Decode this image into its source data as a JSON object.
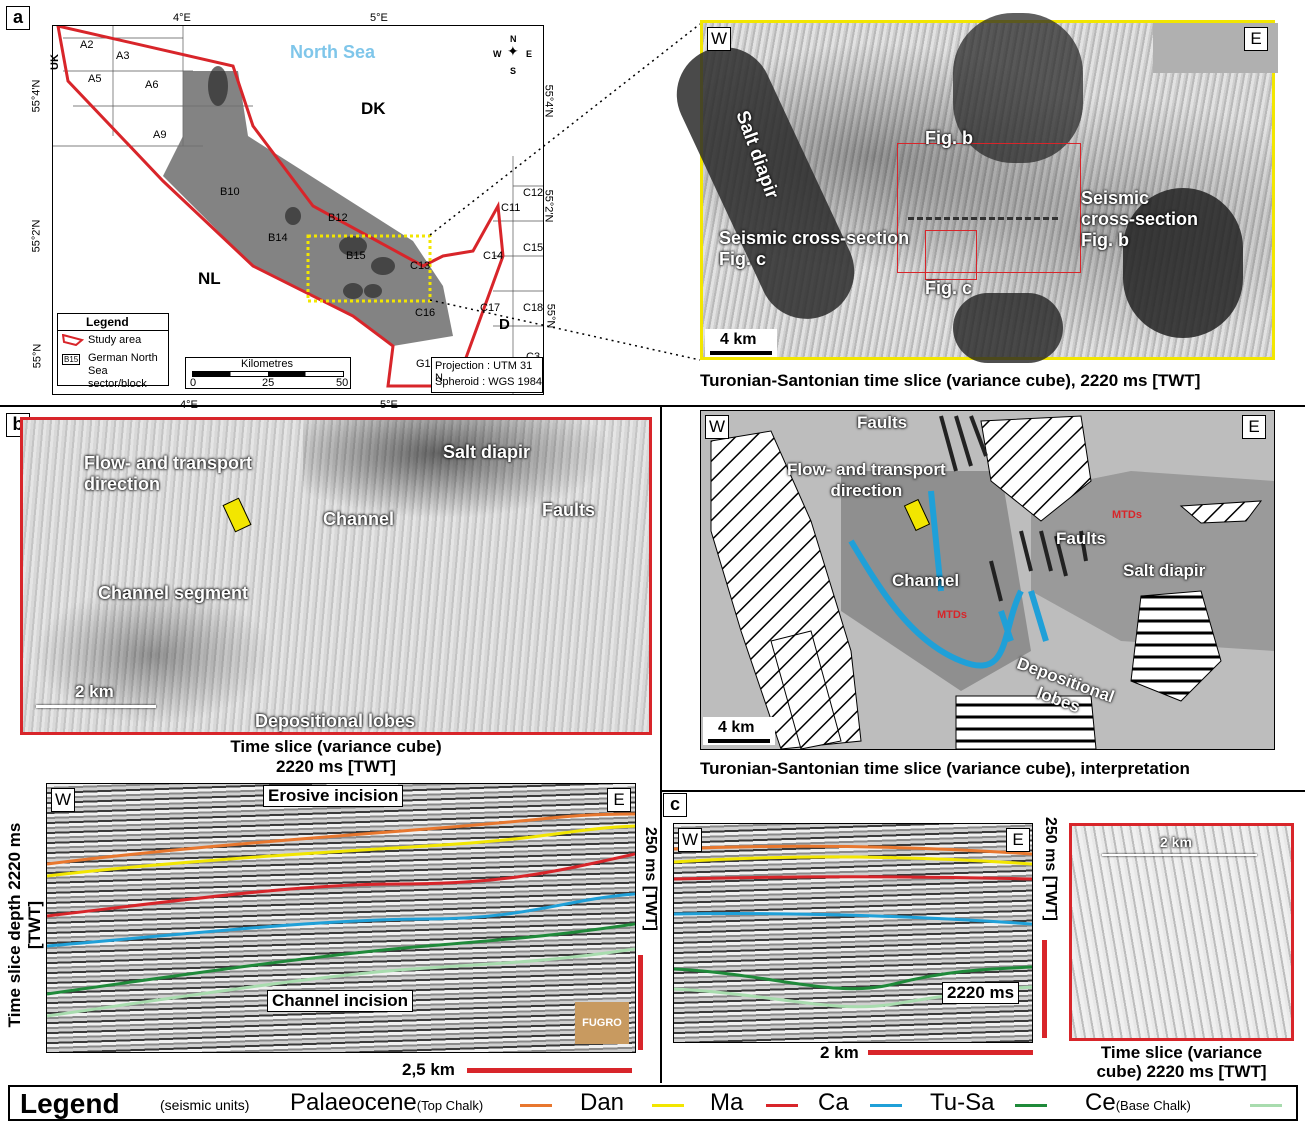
{
  "panels": {
    "a": "a",
    "b": "b",
    "c": "c"
  },
  "map": {
    "top_ticks": [
      "4°E",
      "5°E"
    ],
    "bottom_ticks": [
      "4°E",
      "5°E"
    ],
    "lat_left": [
      "55°4'N",
      "55°2'N",
      "55°N"
    ],
    "lat_right": [
      "55°4'N",
      "55°2'N",
      "55°N"
    ],
    "sea_label": "North Sea",
    "countries": {
      "dk": "DK",
      "nl": "NL",
      "uk": "UK",
      "d": "D"
    },
    "blocks": [
      "A2",
      "A3",
      "A5",
      "A6",
      "A9",
      "B10",
      "B12",
      "B14",
      "B15",
      "C12",
      "C11",
      "C15",
      "C14",
      "C13",
      "C16",
      "C17",
      "C18",
      "G1",
      "C3"
    ],
    "compass": {
      "n": "N",
      "s": "S",
      "e": "E",
      "w": "W"
    },
    "legend_title": "Legend",
    "legend_study": "Study area",
    "legend_block_tag": "B15",
    "legend_block": "German North Sea sector/block",
    "scale_title": "Kilometres",
    "scale_ticks": [
      "0",
      "25",
      "50"
    ],
    "projection": "Projection : UTM 31 N",
    "spheroid": "Spheroid   : WGS 1984"
  },
  "slice_top": {
    "w": "W",
    "e": "E",
    "salt": "Salt diapir",
    "figb": "Fig. b",
    "figc": "Fig. c",
    "xsec_b1": "Seismic",
    "xsec_b2": "cross-section",
    "xsec_b3": "Fig. b",
    "xsec_c1": "Seismic cross-section",
    "xsec_c2": "Fig. c",
    "scale": "4 km",
    "caption": "Turonian-Santonian time slice (variance cube), 2220 ms [TWT]"
  },
  "slice_interp": {
    "w": "W",
    "e": "E",
    "faults_top": "Faults",
    "flow1": "Flow- and transport",
    "flow2": "direction",
    "channel": "Channel",
    "mtds1": "MTDs",
    "mtds2": "MTDs",
    "faults_mid": "Faults",
    "salt": "Salt diapir",
    "depo1": "Depositional",
    "depo2": "lobes",
    "scale": "4 km",
    "caption": "Turonian-Santonian time slice (variance cube), interpretation"
  },
  "slice_b": {
    "salt": "Salt diapir",
    "faults": "Faults",
    "flow1": "Flow- and transport",
    "flow2": "direction",
    "channel": "Channel",
    "segment": "Channel segment",
    "depo": "Depositional lobes",
    "scale": "2 km",
    "caption1": "Time slice (variance cube)",
    "caption2": "2220 ms [TWT]"
  },
  "section_b": {
    "w": "W",
    "e": "E",
    "erosive": "Erosive incision",
    "channel_incision": "Channel incision",
    "vlabel": "Time slice depth 2220 ms [TWT]",
    "vscale": "250 ms [TWT]",
    "hscale": "2,5 km",
    "logo": "FUGRO"
  },
  "section_c": {
    "w": "W",
    "e": "E",
    "ms": "2220 ms",
    "vscale": "250 ms [TWT]",
    "hscale": "2 km",
    "inset_scale": "2 km",
    "inset_caption1": "Time slice (variance",
    "inset_caption2": "cube) 2220 ms [TWT]"
  },
  "legend": {
    "title": "Legend",
    "sub": "(seismic units)",
    "items": [
      {
        "name": "Palaeocene",
        "note": "(Top Chalk)",
        "color": "#e8772e"
      },
      {
        "name": "Dan",
        "note": "",
        "color": "#f2e600"
      },
      {
        "name": "Ma",
        "note": "",
        "color": "#d8252a"
      },
      {
        "name": "Ca",
        "note": "",
        "color": "#1fa0d8"
      },
      {
        "name": "Tu-Sa",
        "note": "",
        "color": "#1f8a3a"
      },
      {
        "name": "Ce",
        "note": "(Base Chalk)",
        "color": "#a8dcae"
      }
    ]
  }
}
